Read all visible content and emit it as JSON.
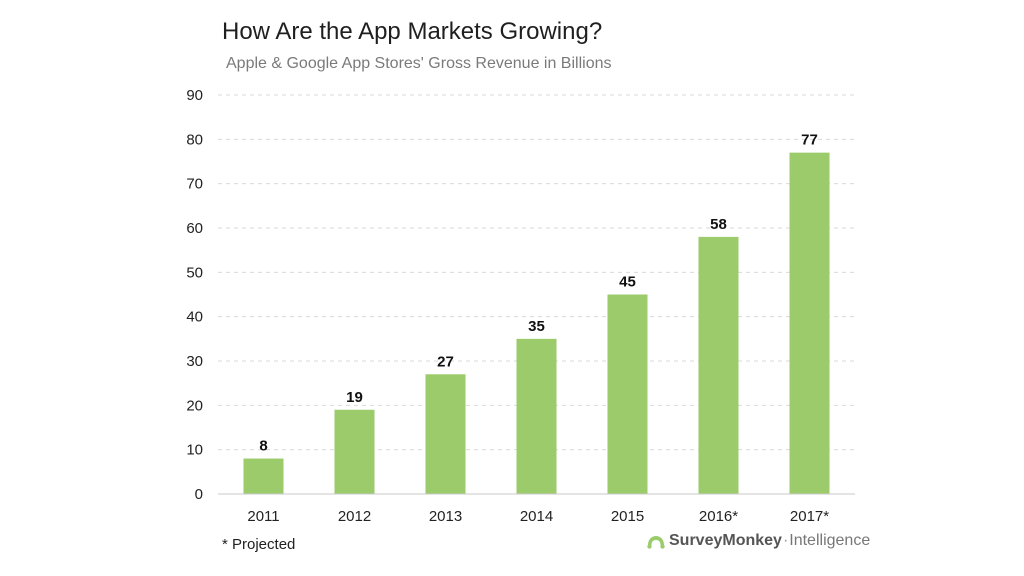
{
  "chart_data": {
    "type": "bar",
    "title": "How Are the App Markets Growing?",
    "subtitle": "Apple & Google App Stores' Gross Revenue in Billions",
    "categories": [
      "2011",
      "2012",
      "2013",
      "2014",
      "2015",
      "2016*",
      "2017*"
    ],
    "values": [
      8,
      19,
      27,
      35,
      45,
      58,
      77
    ],
    "ylim": [
      0,
      90
    ],
    "yticks": [
      "0",
      "10",
      "20",
      "30",
      "40",
      "50",
      "60",
      "70",
      "80",
      "90"
    ],
    "xlabel": "",
    "ylabel": "",
    "grid": true,
    "bar_color": "#9bcb6a",
    "grid_color": "#d9d9d9"
  },
  "footnote": "* Projected",
  "brand": {
    "name": "SurveyMonkey",
    "separator": "·",
    "product": "Intelligence",
    "color": "#9bcb6a"
  }
}
